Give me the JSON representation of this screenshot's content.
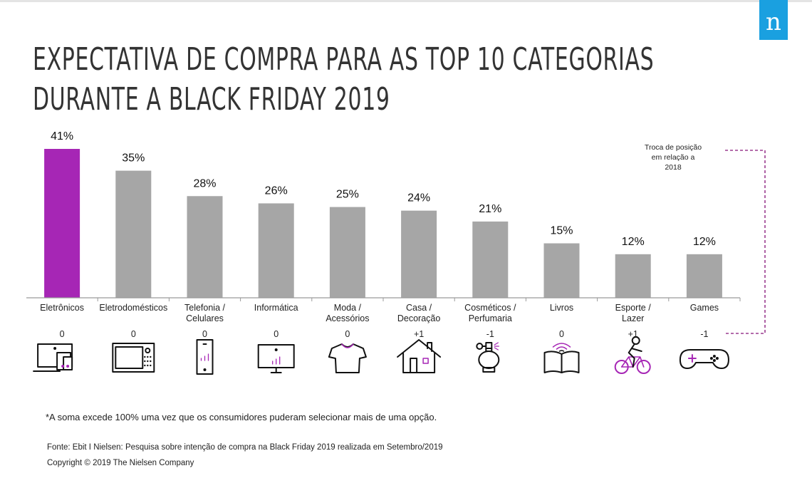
{
  "header": {
    "title_line1": "EXPECTATIVA DE COMPRA PARA AS TOP 10 CATEGORIAS",
    "title_line2": "DURANTE A BLACK FRIDAY 2019",
    "logo_letter": "n"
  },
  "colors": {
    "highlight_bar": "#a626b5",
    "default_bar": "#a6a6a6",
    "logo_bg": "#1aa0e0",
    "dashed_bracket": "#9b3c8f",
    "icon_accent": "#a626b5"
  },
  "chart_data": {
    "type": "bar",
    "title": "Expectativa de compra para as top 10 categorias durante a Black Friday 2019",
    "xlabel": "",
    "ylabel": "",
    "ylim": [
      0,
      41
    ],
    "grid": false,
    "categories": [
      [
        "Eletrônicos"
      ],
      [
        "Eletrodomésticos"
      ],
      [
        "Telefonia /",
        "Celulares"
      ],
      [
        "Informática"
      ],
      [
        "Moda /",
        "Acessórios"
      ],
      [
        "Casa /",
        "Decoração"
      ],
      [
        "Cosméticos /",
        "Perfumaria"
      ],
      [
        "Livros"
      ],
      [
        "Esporte /",
        "Lazer"
      ],
      [
        "Games"
      ]
    ],
    "values": [
      41,
      35,
      28,
      26,
      25,
      24,
      21,
      15,
      12,
      12
    ],
    "value_labels": [
      "41%",
      "35%",
      "28%",
      "26%",
      "25%",
      "24%",
      "21%",
      "15%",
      "12%",
      "12%"
    ],
    "highlight_index": 0,
    "position_change_label": [
      "Troca de posição",
      "em relação a",
      "2018"
    ],
    "position_changes": [
      "0",
      "0",
      "0",
      "0",
      "0",
      "+1",
      "-1",
      "0",
      "+1",
      "-1"
    ],
    "icons": [
      "devices-icon",
      "microwave-icon",
      "smartphone-icon",
      "monitor-icon",
      "tshirt-icon",
      "house-icon",
      "perfume-icon",
      "book-icon",
      "cyclist-icon",
      "gamepad-icon"
    ]
  },
  "footer": {
    "footnote": "*A soma excede 100% uma vez que os consumidores puderam selecionar mais de uma opção.",
    "source": "Fonte: Ebit I Nielsen: Pesquisa sobre intenção de compra na Black Friday 2019 realizada em Setembro/2019",
    "copyright": "Copyright © 2019 The Nielsen Company"
  }
}
